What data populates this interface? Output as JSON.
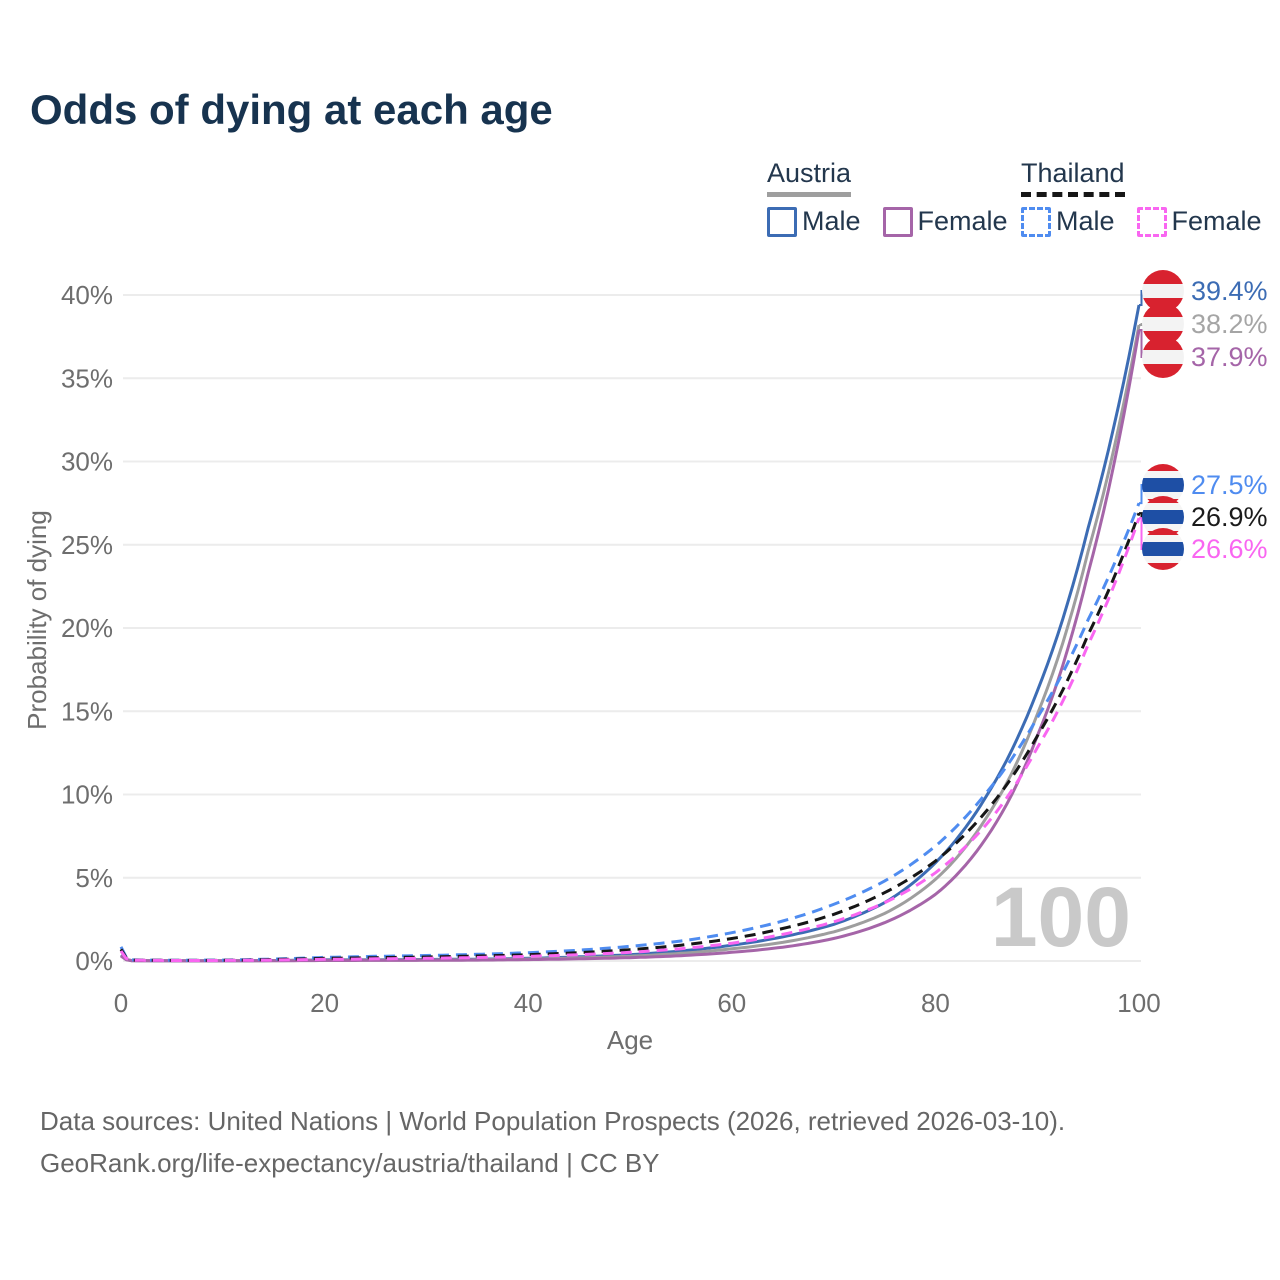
{
  "title": "Odds of dying at each age",
  "legend": {
    "austria": {
      "label": "Austria",
      "male": "Male",
      "female": "Female"
    },
    "thailand": {
      "label": "Thailand",
      "male": "Male",
      "female": "Female"
    }
  },
  "watermark": "100",
  "end_labels": [
    {
      "id": "austria-male",
      "value": "39.4%",
      "color": "#3c6cb4",
      "flag": "austria"
    },
    {
      "id": "austria-total",
      "value": "38.2%",
      "color": "#a5a5a5",
      "flag": "austria"
    },
    {
      "id": "austria-female",
      "value": "37.9%",
      "color": "#a565a8",
      "flag": "austria"
    },
    {
      "id": "thailand-male",
      "value": "27.5%",
      "color": "#4f8cf0",
      "flag": "thailand"
    },
    {
      "id": "thailand-total",
      "value": "26.9%",
      "color": "#1b1b1b",
      "flag": "thailand"
    },
    {
      "id": "thailand-female",
      "value": "26.6%",
      "color": "#f966f1",
      "flag": "thailand"
    }
  ],
  "footer": {
    "line1": "Data sources: United Nations | World Population Prospects (2026, retrieved 2026-03-10).",
    "line2": "GeoRank.org/life-expectancy/austria/thailand | CC BY"
  },
  "chart_data": {
    "type": "line",
    "title": "Odds of dying at each age",
    "xlabel": "Age",
    "ylabel": "Probability of dying",
    "xlim": [
      0,
      100
    ],
    "ylim": [
      0,
      40
    ],
    "grid": "horizontal",
    "legend_position": "top-right",
    "yticks": [
      {
        "v": 0,
        "label": "0%"
      },
      {
        "v": 5,
        "label": "5%"
      },
      {
        "v": 10,
        "label": "10%"
      },
      {
        "v": 15,
        "label": "15%"
      },
      {
        "v": 20,
        "label": "20%"
      },
      {
        "v": 25,
        "label": "25%"
      },
      {
        "v": 30,
        "label": "30%"
      },
      {
        "v": 35,
        "label": "35%"
      },
      {
        "v": 40,
        "label": "40%"
      }
    ],
    "xticks": [
      {
        "v": 0,
        "label": "0"
      },
      {
        "v": 20,
        "label": "20"
      },
      {
        "v": 40,
        "label": "40"
      },
      {
        "v": 60,
        "label": "60"
      },
      {
        "v": 80,
        "label": "80"
      },
      {
        "v": 100,
        "label": "100"
      }
    ],
    "series": [
      {
        "name": "Austria Male",
        "country": "Austria",
        "sex": "male",
        "color": "#3c6cb4",
        "dash": false,
        "end_value_pct": 39.4,
        "points": [
          [
            0,
            0.36
          ],
          [
            1,
            0.03
          ],
          [
            5,
            0.012
          ],
          [
            10,
            0.012
          ],
          [
            15,
            0.03
          ],
          [
            20,
            0.07
          ],
          [
            25,
            0.08
          ],
          [
            30,
            0.09
          ],
          [
            35,
            0.11
          ],
          [
            40,
            0.16
          ],
          [
            45,
            0.25
          ],
          [
            50,
            0.38
          ],
          [
            55,
            0.6
          ],
          [
            60,
            0.95
          ],
          [
            65,
            1.45
          ],
          [
            70,
            2.2
          ],
          [
            75,
            3.5
          ],
          [
            80,
            5.9
          ],
          [
            85,
            9.9
          ],
          [
            90,
            16.2
          ],
          [
            95,
            26.0
          ],
          [
            100,
            39.4
          ]
        ]
      },
      {
        "name": "Austria",
        "country": "Austria",
        "sex": "both",
        "color": "#9e9e9e",
        "dash": false,
        "end_value_pct": 38.2,
        "points": [
          [
            0,
            0.33
          ],
          [
            1,
            0.025
          ],
          [
            5,
            0.01
          ],
          [
            10,
            0.01
          ],
          [
            15,
            0.022
          ],
          [
            20,
            0.05
          ],
          [
            25,
            0.058
          ],
          [
            30,
            0.065
          ],
          [
            35,
            0.082
          ],
          [
            40,
            0.12
          ],
          [
            45,
            0.19
          ],
          [
            50,
            0.29
          ],
          [
            55,
            0.46
          ],
          [
            60,
            0.73
          ],
          [
            65,
            1.12
          ],
          [
            70,
            1.75
          ],
          [
            75,
            2.85
          ],
          [
            80,
            4.9
          ],
          [
            85,
            8.6
          ],
          [
            90,
            14.8
          ],
          [
            95,
            24.6
          ],
          [
            100,
            38.2
          ]
        ]
      },
      {
        "name": "Austria Female",
        "country": "Austria",
        "sex": "female",
        "color": "#a565a8",
        "dash": false,
        "end_value_pct": 37.9,
        "points": [
          [
            0,
            0.3
          ],
          [
            1,
            0.02
          ],
          [
            5,
            0.009
          ],
          [
            10,
            0.009
          ],
          [
            15,
            0.015
          ],
          [
            20,
            0.03
          ],
          [
            25,
            0.035
          ],
          [
            30,
            0.04
          ],
          [
            35,
            0.055
          ],
          [
            40,
            0.085
          ],
          [
            45,
            0.13
          ],
          [
            50,
            0.2
          ],
          [
            55,
            0.32
          ],
          [
            60,
            0.52
          ],
          [
            65,
            0.83
          ],
          [
            70,
            1.35
          ],
          [
            75,
            2.3
          ],
          [
            80,
            4.0
          ],
          [
            85,
            7.4
          ],
          [
            90,
            13.5
          ],
          [
            95,
            23.3
          ],
          [
            100,
            37.9
          ]
        ]
      },
      {
        "name": "Thailand Male",
        "country": "Thailand",
        "sex": "male",
        "color": "#4f8cf0",
        "dash": true,
        "end_value_pct": 27.5,
        "points": [
          [
            0,
            0.85
          ],
          [
            1,
            0.07
          ],
          [
            5,
            0.045
          ],
          [
            10,
            0.055
          ],
          [
            15,
            0.12
          ],
          [
            20,
            0.22
          ],
          [
            25,
            0.28
          ],
          [
            30,
            0.33
          ],
          [
            35,
            0.4
          ],
          [
            40,
            0.5
          ],
          [
            45,
            0.65
          ],
          [
            50,
            0.88
          ],
          [
            55,
            1.2
          ],
          [
            60,
            1.7
          ],
          [
            65,
            2.4
          ],
          [
            70,
            3.4
          ],
          [
            75,
            4.8
          ],
          [
            80,
            6.9
          ],
          [
            85,
            10.1
          ],
          [
            90,
            14.6
          ],
          [
            95,
            20.5
          ],
          [
            100,
            27.5
          ]
        ]
      },
      {
        "name": "Thailand",
        "country": "Thailand",
        "sex": "both",
        "color": "#161616",
        "dash": true,
        "end_value_pct": 26.9,
        "points": [
          [
            0,
            0.7
          ],
          [
            1,
            0.055
          ],
          [
            5,
            0.035
          ],
          [
            10,
            0.04
          ],
          [
            15,
            0.09
          ],
          [
            20,
            0.16
          ],
          [
            25,
            0.2
          ],
          [
            30,
            0.24
          ],
          [
            35,
            0.3
          ],
          [
            40,
            0.38
          ],
          [
            45,
            0.5
          ],
          [
            50,
            0.68
          ],
          [
            55,
            0.95
          ],
          [
            60,
            1.35
          ],
          [
            65,
            1.95
          ],
          [
            70,
            2.8
          ],
          [
            75,
            4.1
          ],
          [
            80,
            6.0
          ],
          [
            85,
            9.0
          ],
          [
            90,
            13.5
          ],
          [
            95,
            19.6
          ],
          [
            100,
            26.9
          ]
        ]
      },
      {
        "name": "Thailand Female",
        "country": "Thailand",
        "sex": "female",
        "color": "#f966f1",
        "dash": true,
        "end_value_pct": 26.6,
        "points": [
          [
            0,
            0.6
          ],
          [
            1,
            0.045
          ],
          [
            5,
            0.03
          ],
          [
            10,
            0.033
          ],
          [
            15,
            0.06
          ],
          [
            20,
            0.1
          ],
          [
            25,
            0.13
          ],
          [
            30,
            0.16
          ],
          [
            35,
            0.21
          ],
          [
            40,
            0.28
          ],
          [
            45,
            0.38
          ],
          [
            50,
            0.52
          ],
          [
            55,
            0.74
          ],
          [
            60,
            1.07
          ],
          [
            65,
            1.6
          ],
          [
            70,
            2.35
          ],
          [
            75,
            3.5
          ],
          [
            80,
            5.3
          ],
          [
            85,
            8.2
          ],
          [
            90,
            12.8
          ],
          [
            95,
            19.0
          ],
          [
            100,
            26.6
          ]
        ]
      }
    ]
  }
}
